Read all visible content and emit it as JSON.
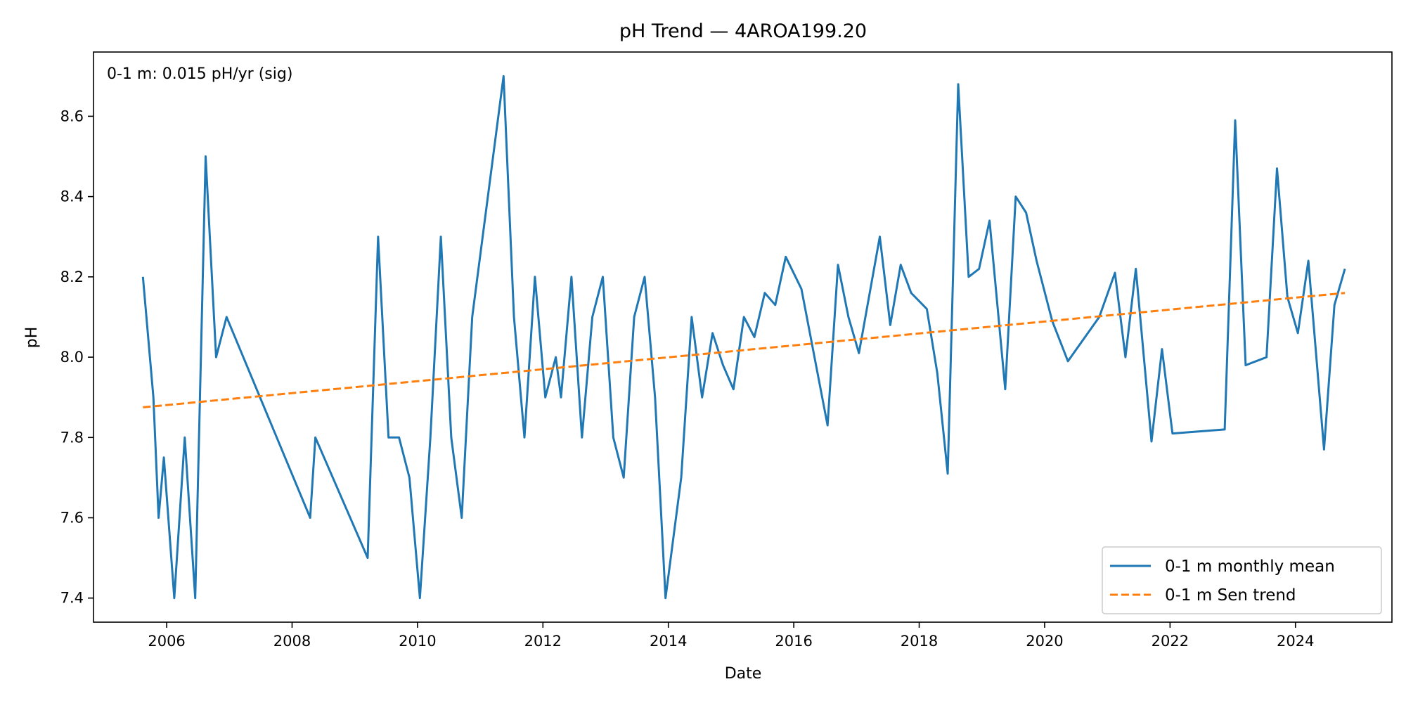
{
  "chart_data": {
    "type": "line",
    "title": "pH Trend — 4AROA199.20",
    "xlabel": "Date",
    "ylabel": "pH",
    "xlim": [
      "2004-11-01",
      "2025-07-15"
    ],
    "ylim": [
      7.34,
      8.76
    ],
    "x_ticks": [
      "2006",
      "2008",
      "2010",
      "2012",
      "2014",
      "2016",
      "2018",
      "2020",
      "2022",
      "2024"
    ],
    "y_ticks": [
      "7.4",
      "7.6",
      "7.8",
      "8.0",
      "8.2",
      "8.4",
      "8.6"
    ],
    "annotation": "0-1 m: 0.015 pH/yr (sig)",
    "legend_position": "lower-right",
    "grid": false,
    "series": [
      {
        "name": "0-1 m monthly mean",
        "color": "#1f77b4",
        "style": "solid",
        "points": [
          [
            "2005-08",
            8.2
          ],
          [
            "2005-10",
            7.9
          ],
          [
            "2005-11",
            7.6
          ],
          [
            "2005-12",
            7.75
          ],
          [
            "2006-02",
            7.4
          ],
          [
            "2006-04",
            7.8
          ],
          [
            "2006-06",
            7.4
          ],
          [
            "2006-08",
            8.5
          ],
          [
            "2006-10",
            8.0
          ],
          [
            "2006-12",
            8.1
          ],
          [
            "2008-04",
            7.6
          ],
          [
            "2008-05",
            7.8
          ],
          [
            "2009-03",
            7.5
          ],
          [
            "2009-05",
            8.3
          ],
          [
            "2009-07",
            7.8
          ],
          [
            "2009-09",
            7.8
          ],
          [
            "2009-11",
            7.7
          ],
          [
            "2010-01",
            7.4
          ],
          [
            "2010-03",
            7.8
          ],
          [
            "2010-05",
            8.3
          ],
          [
            "2010-07",
            7.8
          ],
          [
            "2010-09",
            7.6
          ],
          [
            "2010-11",
            8.1
          ],
          [
            "2011-05",
            8.7
          ],
          [
            "2011-07",
            8.1
          ],
          [
            "2011-09",
            7.8
          ],
          [
            "2011-11",
            8.2
          ],
          [
            "2012-01",
            7.9
          ],
          [
            "2012-03",
            8.0
          ],
          [
            "2012-04",
            7.9
          ],
          [
            "2012-06",
            8.2
          ],
          [
            "2012-08",
            7.8
          ],
          [
            "2012-10",
            8.1
          ],
          [
            "2012-12",
            8.2
          ],
          [
            "2013-02",
            7.8
          ],
          [
            "2013-04",
            7.7
          ],
          [
            "2013-06",
            8.1
          ],
          [
            "2013-08",
            8.2
          ],
          [
            "2013-10",
            7.9
          ],
          [
            "2013-12",
            7.4
          ],
          [
            "2014-03",
            7.7
          ],
          [
            "2014-05",
            8.1
          ],
          [
            "2014-07",
            7.9
          ],
          [
            "2014-09",
            8.06
          ],
          [
            "2014-11",
            7.98
          ],
          [
            "2015-01",
            7.92
          ],
          [
            "2015-03",
            8.1
          ],
          [
            "2015-05",
            8.05
          ],
          [
            "2015-07",
            8.16
          ],
          [
            "2015-09",
            8.13
          ],
          [
            "2015-11",
            8.25
          ],
          [
            "2016-02",
            8.17
          ],
          [
            "2016-07",
            7.83
          ],
          [
            "2016-09",
            8.23
          ],
          [
            "2016-11",
            8.1
          ],
          [
            "2017-01",
            8.01
          ],
          [
            "2017-05",
            8.3
          ],
          [
            "2017-07",
            8.08
          ],
          [
            "2017-09",
            8.23
          ],
          [
            "2017-11",
            8.16
          ],
          [
            "2018-02",
            8.12
          ],
          [
            "2018-04",
            7.96
          ],
          [
            "2018-06",
            7.71
          ],
          [
            "2018-08",
            8.68
          ],
          [
            "2018-10",
            8.2
          ],
          [
            "2018-12",
            8.22
          ],
          [
            "2019-02",
            8.34
          ],
          [
            "2019-05",
            7.92
          ],
          [
            "2019-07",
            8.4
          ],
          [
            "2019-09",
            8.36
          ],
          [
            "2019-11",
            8.24
          ],
          [
            "2020-02",
            8.09
          ],
          [
            "2020-05",
            7.99
          ],
          [
            "2020-11",
            8.1
          ],
          [
            "2021-02",
            8.21
          ],
          [
            "2021-04",
            8.0
          ],
          [
            "2021-06",
            8.22
          ],
          [
            "2021-09",
            7.79
          ],
          [
            "2021-11",
            8.02
          ],
          [
            "2022-01",
            7.81
          ],
          [
            "2022-11",
            7.82
          ],
          [
            "2023-01",
            8.59
          ],
          [
            "2023-03",
            7.98
          ],
          [
            "2023-07",
            8.0
          ],
          [
            "2023-09",
            8.47
          ],
          [
            "2023-11",
            8.15
          ],
          [
            "2024-01",
            8.06
          ],
          [
            "2024-03",
            8.24
          ],
          [
            "2024-06",
            7.77
          ],
          [
            "2024-08",
            8.13
          ],
          [
            "2024-10",
            8.22
          ]
        ]
      },
      {
        "name": "0-1 m Sen trend",
        "color": "#ff7f0e",
        "style": "dashed",
        "points": [
          [
            "2005-08",
            7.875
          ],
          [
            "2024-10",
            8.16
          ]
        ]
      }
    ]
  }
}
